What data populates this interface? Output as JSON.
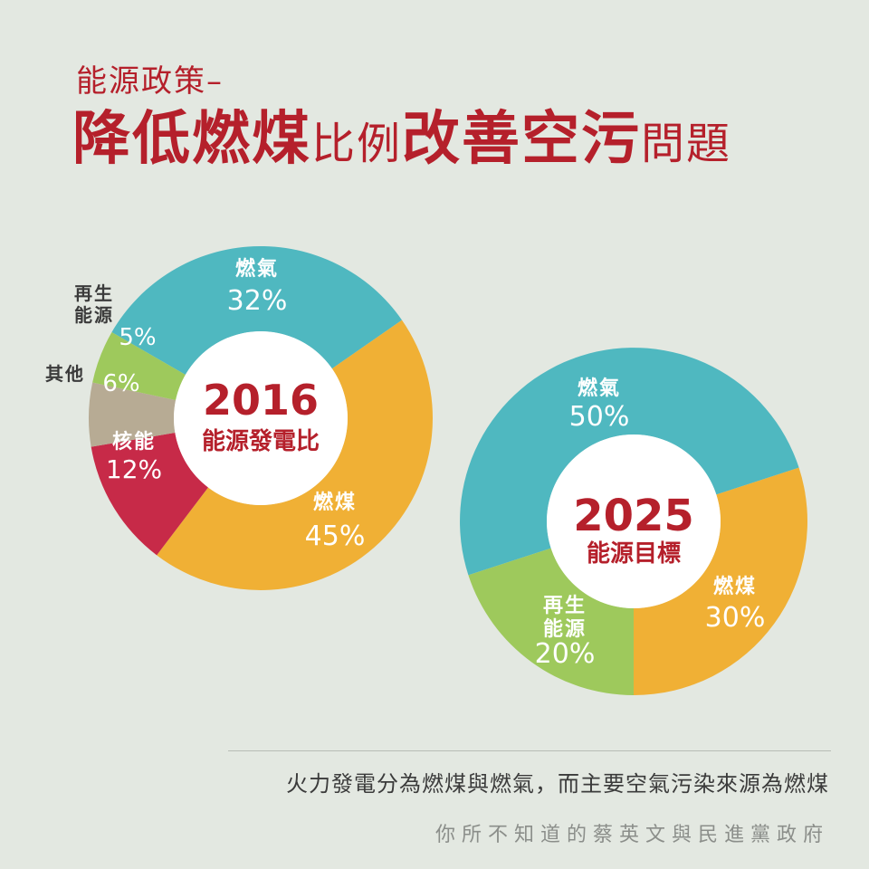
{
  "header": {
    "subtitle": "能源政策–",
    "title_parts": [
      "降低燃煤",
      "比例",
      "改善空污",
      "問題"
    ]
  },
  "chart_data": [
    {
      "type": "pie",
      "center_year": "2016",
      "center_label": "能源發電比",
      "slices": [
        {
          "label": "燃氣",
          "value": 32,
          "value_text": "32%",
          "color": "#4fb8c0"
        },
        {
          "label": "燃煤",
          "value": 45,
          "value_text": "45%",
          "color": "#f0b035"
        },
        {
          "label": "核能",
          "value": 12,
          "value_text": "12%",
          "color": "#c72a48"
        },
        {
          "label": "其他",
          "value": 6,
          "value_text": "6%",
          "color": "#b7ab94"
        },
        {
          "label": "再生能源",
          "label_lines": [
            "再生",
            "能源"
          ],
          "value": 5,
          "value_text": "5%",
          "color": "#9ec95c"
        }
      ]
    },
    {
      "type": "pie",
      "center_year": "2025",
      "center_label": "能源目標",
      "slices": [
        {
          "label": "燃氣",
          "value": 50,
          "value_text": "50%",
          "color": "#4fb8c0"
        },
        {
          "label": "燃煤",
          "value": 30,
          "value_text": "30%",
          "color": "#f0b035"
        },
        {
          "label": "再生能源",
          "label_lines": [
            "再生",
            "能源"
          ],
          "value": 20,
          "value_text": "20%",
          "color": "#9ec95c"
        }
      ]
    }
  ],
  "footer": {
    "caption": "火力發電分為燃煤與燃氣，而主要空氣污染來源為燃煤",
    "credit": "你所不知道的蔡英文與民進黨政府"
  }
}
